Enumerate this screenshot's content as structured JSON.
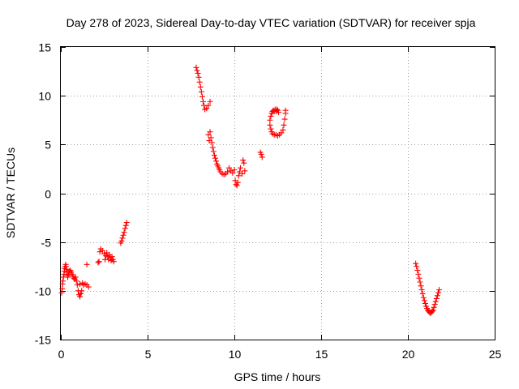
{
  "chart_data": {
    "type": "scatter",
    "title": "Day 278 of 2023, Sidereal Day-to-day VTEC variation (SDTVAR) for receiver spja",
    "xlabel": "GPS time / hours",
    "ylabel": "SDTVAR / TECUs",
    "xlim": [
      0,
      25
    ],
    "ylim": [
      -15,
      15
    ],
    "xticks": [
      0,
      5,
      10,
      15,
      20,
      25
    ],
    "yticks": [
      -15,
      -10,
      -5,
      0,
      5,
      10,
      15
    ],
    "xtick_labels": [
      "0",
      "5",
      "10",
      "15",
      "20",
      "25"
    ],
    "ytick_labels": [
      "-15",
      "-10",
      "-5",
      "0",
      "5",
      "10",
      "15"
    ],
    "grid": true,
    "marker": "plus",
    "color": "#ff0000",
    "series": [
      {
        "points": [
          [
            0.05,
            -10.2
          ],
          [
            0.08,
            -9.8
          ],
          [
            0.1,
            -9.3
          ],
          [
            0.12,
            -9.0
          ],
          [
            0.15,
            -8.6
          ],
          [
            0.18,
            -8.3
          ],
          [
            0.2,
            -8.0
          ],
          [
            0.22,
            -7.7
          ],
          [
            0.25,
            -7.5
          ],
          [
            0.28,
            -7.3
          ],
          [
            0.3,
            -7.5
          ],
          [
            0.32,
            -7.8
          ],
          [
            0.35,
            -8.1
          ],
          [
            0.38,
            -8.4
          ],
          [
            0.4,
            -8.6
          ],
          [
            0.45,
            -8.3
          ],
          [
            0.5,
            -8.0
          ],
          [
            0.55,
            -7.9
          ],
          [
            0.6,
            -8.1
          ],
          [
            0.65,
            -8.3
          ],
          [
            0.7,
            -8.5
          ],
          [
            0.75,
            -8.7
          ],
          [
            0.8,
            -8.8
          ],
          [
            0.85,
            -8.6
          ],
          [
            0.9,
            -9.0
          ],
          [
            0.95,
            -9.4
          ],
          [
            1.0,
            -10.0
          ],
          [
            1.05,
            -10.4
          ],
          [
            1.1,
            -10.6
          ],
          [
            1.15,
            -10.3
          ],
          [
            1.2,
            -10.0
          ],
          [
            1.1,
            -9.3
          ],
          [
            1.25,
            -9.2
          ],
          [
            1.3,
            -9.4
          ],
          [
            1.4,
            -9.3
          ],
          [
            1.5,
            -9.4
          ],
          [
            1.6,
            -9.6
          ],
          [
            1.5,
            -7.3
          ],
          [
            2.15,
            -7.1
          ],
          [
            2.2,
            -7.0
          ],
          [
            2.25,
            -6.0
          ],
          [
            2.3,
            -5.7
          ],
          [
            2.4,
            -5.9
          ],
          [
            2.5,
            -6.2
          ],
          [
            2.55,
            -6.8
          ],
          [
            2.6,
            -6.4
          ],
          [
            2.65,
            -6.1
          ],
          [
            2.7,
            -6.5
          ],
          [
            2.75,
            -6.8
          ],
          [
            2.8,
            -6.3
          ],
          [
            2.85,
            -6.6
          ],
          [
            2.9,
            -6.9
          ],
          [
            2.95,
            -6.5
          ],
          [
            3.0,
            -6.8
          ],
          [
            3.05,
            -7.0
          ],
          [
            3.45,
            -5.1
          ],
          [
            3.5,
            -4.9
          ],
          [
            3.55,
            -4.6
          ],
          [
            3.6,
            -4.3
          ],
          [
            3.65,
            -4.0
          ],
          [
            3.7,
            -3.6
          ],
          [
            3.75,
            -3.3
          ],
          [
            3.8,
            -3.0
          ],
          [
            7.8,
            12.9
          ],
          [
            7.85,
            12.6
          ],
          [
            7.9,
            12.3
          ],
          [
            7.95,
            11.9
          ],
          [
            8.0,
            11.4
          ],
          [
            8.05,
            10.9
          ],
          [
            8.1,
            10.4
          ],
          [
            8.15,
            9.9
          ],
          [
            8.2,
            9.4
          ],
          [
            8.25,
            9.0
          ],
          [
            8.3,
            8.6
          ],
          [
            8.4,
            8.7
          ],
          [
            8.5,
            9.0
          ],
          [
            8.6,
            9.4
          ],
          [
            8.5,
            6.0
          ],
          [
            8.55,
            5.4
          ],
          [
            8.6,
            6.3
          ],
          [
            8.65,
            5.7
          ],
          [
            8.7,
            5.2
          ],
          [
            8.75,
            4.7
          ],
          [
            8.8,
            4.3
          ],
          [
            8.85,
            3.9
          ],
          [
            8.9,
            3.6
          ],
          [
            8.95,
            3.3
          ],
          [
            9.0,
            3.0
          ],
          [
            9.05,
            2.8
          ],
          [
            9.1,
            2.6
          ],
          [
            9.15,
            2.4
          ],
          [
            9.2,
            2.2
          ],
          [
            9.3,
            2.0
          ],
          [
            9.4,
            1.9
          ],
          [
            9.5,
            2.0
          ],
          [
            9.6,
            2.2
          ],
          [
            9.7,
            2.6
          ],
          [
            9.8,
            2.3
          ],
          [
            9.9,
            2.1
          ],
          [
            10.0,
            2.4
          ],
          [
            10.05,
            1.3
          ],
          [
            10.1,
            0.9
          ],
          [
            10.15,
            0.8
          ],
          [
            10.2,
            1.1
          ],
          [
            10.25,
            1.8
          ],
          [
            10.3,
            2.2
          ],
          [
            10.35,
            2.6
          ],
          [
            10.45,
            2.0
          ],
          [
            10.5,
            3.4
          ],
          [
            10.55,
            3.1
          ],
          [
            10.6,
            2.3
          ],
          [
            11.5,
            4.2
          ],
          [
            11.55,
            4.0
          ],
          [
            11.6,
            3.7
          ],
          [
            12.05,
            7.5
          ],
          [
            12.1,
            7.9
          ],
          [
            12.15,
            8.2
          ],
          [
            12.2,
            8.4
          ],
          [
            12.25,
            8.5
          ],
          [
            12.3,
            8.4
          ],
          [
            12.35,
            8.6
          ],
          [
            12.4,
            8.4
          ],
          [
            12.45,
            8.6
          ],
          [
            12.5,
            8.5
          ],
          [
            12.55,
            8.3
          ],
          [
            12.1,
            6.6
          ],
          [
            12.15,
            6.3
          ],
          [
            12.2,
            6.1
          ],
          [
            12.3,
            6.0
          ],
          [
            12.4,
            6.0
          ],
          [
            12.5,
            5.9
          ],
          [
            12.6,
            6.0
          ],
          [
            12.7,
            6.2
          ],
          [
            12.8,
            6.5
          ],
          [
            12.85,
            7.0
          ],
          [
            12.9,
            7.6
          ],
          [
            12.95,
            8.2
          ],
          [
            12.95,
            8.5
          ],
          [
            12.05,
            7.0
          ],
          [
            20.45,
            -7.2
          ],
          [
            20.5,
            -7.5
          ],
          [
            20.55,
            -7.9
          ],
          [
            20.6,
            -8.3
          ],
          [
            20.65,
            -8.7
          ],
          [
            20.7,
            -9.1
          ],
          [
            20.75,
            -9.5
          ],
          [
            20.8,
            -9.9
          ],
          [
            20.85,
            -10.3
          ],
          [
            20.9,
            -10.7
          ],
          [
            20.95,
            -11.0
          ],
          [
            21.0,
            -11.3
          ],
          [
            21.05,
            -11.6
          ],
          [
            21.1,
            -11.8
          ],
          [
            21.15,
            -12.0
          ],
          [
            21.2,
            -12.1
          ],
          [
            21.25,
            -12.2
          ],
          [
            21.3,
            -12.3
          ],
          [
            21.35,
            -12.2
          ],
          [
            21.4,
            -12.1
          ],
          [
            21.45,
            -12.0
          ],
          [
            21.5,
            -11.7
          ],
          [
            21.55,
            -11.4
          ],
          [
            21.6,
            -11.1
          ],
          [
            21.65,
            -10.8
          ],
          [
            21.7,
            -10.5
          ],
          [
            21.75,
            -10.2
          ],
          [
            21.8,
            -9.9
          ]
        ]
      }
    ]
  }
}
